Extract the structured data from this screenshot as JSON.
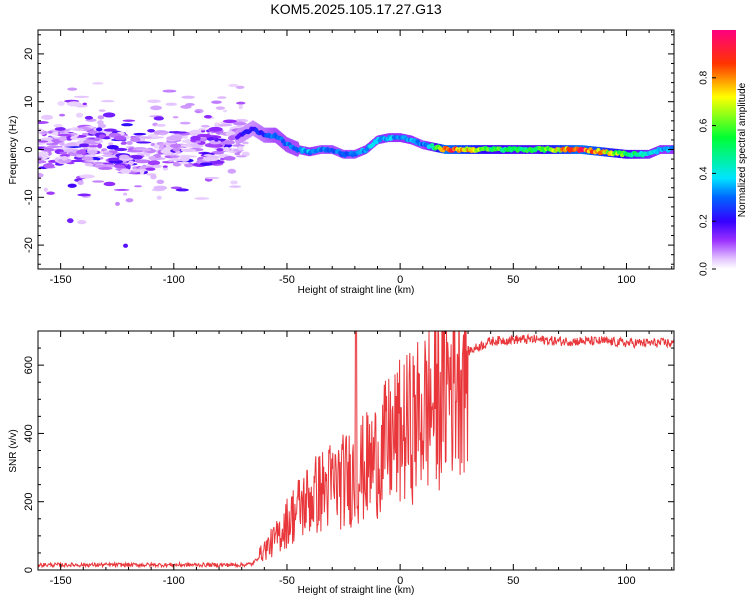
{
  "chart_data": [
    {
      "type": "heatmap",
      "title": "KOM5.2025.105.17.27.G13",
      "xlabel": "Height of straight line (km)",
      "ylabel": "Frequency (Hz)",
      "xlim": [
        -160,
        121
      ],
      "ylim": [
        -25,
        25
      ],
      "xticks": [
        -150,
        -100,
        -50,
        0,
        50,
        100
      ],
      "yticks": [
        -20,
        -10,
        0,
        10,
        20
      ],
      "colorbar": {
        "label": "Normalized spectral amplitude",
        "range": [
          0,
          1
        ],
        "ticks": [
          "0.0",
          "0.2",
          "0.4",
          "0.6",
          "0.8"
        ]
      },
      "ridge": {
        "description": "frequency of the spectral ridge vs height",
        "x": [
          -160,
          -140,
          -120,
          -100,
          -80,
          -70,
          -65,
          -60,
          -55,
          -50,
          -45,
          -40,
          -35,
          -30,
          -25,
          -20,
          -15,
          -10,
          -5,
          0,
          5,
          10,
          15,
          20,
          40,
          60,
          80,
          100,
          110,
          115,
          121
        ],
        "y": [
          0,
          1,
          -1,
          0,
          1,
          3,
          4.5,
          3,
          3,
          1,
          0,
          -0.5,
          0,
          0,
          -1,
          -1,
          0,
          2,
          2.5,
          2.5,
          2,
          1,
          0.5,
          0,
          0,
          0,
          0,
          -1,
          -1,
          0,
          0
        ],
        "amplitude": [
          0.1,
          0.1,
          0.1,
          0.1,
          0.12,
          0.2,
          0.2,
          0.25,
          0.3,
          0.3,
          0.3,
          0.35,
          0.3,
          0.3,
          0.3,
          0.3,
          0.35,
          0.35,
          0.35,
          0.35,
          0.35,
          0.3,
          0.45,
          0.9,
          0.55,
          0.5,
          0.9,
          0.55,
          0.4,
          0.35,
          0.35
        ]
      }
    },
    {
      "type": "line",
      "title": "",
      "xlabel": "Height of straight line (km)",
      "ylabel": "SNR (v/v)",
      "xlim": [
        -160,
        121
      ],
      "ylim": [
        0,
        700
      ],
      "xticks": [
        -150,
        -100,
        -50,
        0,
        50,
        100
      ],
      "yticks": [
        0,
        200,
        400,
        600
      ],
      "series": [
        {
          "name": "SNR",
          "color": "#e8363a",
          "x": [
            -160,
            -140,
            -120,
            -100,
            -80,
            -70,
            -65,
            -60,
            -55,
            -50,
            -45,
            -40,
            -35,
            -30,
            -25,
            -20,
            -15,
            -10,
            -5,
            0,
            5,
            10,
            15,
            20,
            25,
            30,
            40,
            50,
            60,
            70,
            80,
            90,
            100,
            110,
            121
          ],
          "y": [
            15,
            15,
            15,
            15,
            15,
            15,
            18,
            60,
            90,
            140,
            180,
            210,
            230,
            250,
            260,
            280,
            300,
            330,
            370,
            400,
            420,
            460,
            490,
            540,
            600,
            640,
            670,
            675,
            675,
            670,
            670,
            670,
            665,
            665,
            665
          ]
        }
      ]
    }
  ]
}
